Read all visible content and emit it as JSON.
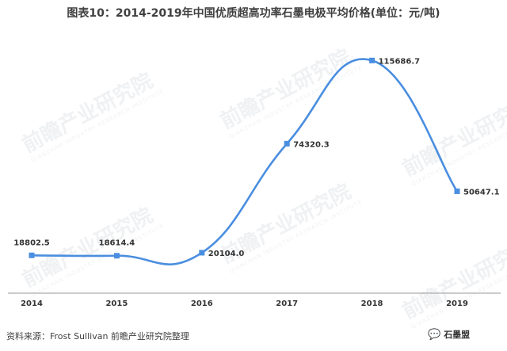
{
  "title": "图表10：2014-2019年中国优质超高功率石墨电极平均价格(单位：元/吨)",
  "source": "资料来源：Frost Sullivan  前瞻产业研究院整理",
  "badge": {
    "label": "石墨盟",
    "icon": "wechat-icon"
  },
  "watermark": {
    "text": "前瞻产业研究院",
    "subtext": "QIANZHAN INDUSTRY RESEARCH INSTITUTE"
  },
  "colors": {
    "line": "#4a8ee0",
    "axis": "#999999",
    "label": "#333333"
  },
  "chart_data": {
    "type": "line",
    "title": "图表10：2014-2019年中国优质超高功率石墨电极平均价格(单位：元/吨)",
    "xlabel": "",
    "ylabel": "",
    "categories": [
      "2014",
      "2015",
      "2016",
      "2017",
      "2018",
      "2019"
    ],
    "series": [
      {
        "values": [
          18802.5,
          18614.4,
          20104.0,
          74320.3,
          115686.7,
          50647.1
        ],
        "labels": [
          "18802.5",
          "18614.4",
          "20104.0",
          "74320.3",
          "115686.7",
          "50647.1"
        ]
      }
    ],
    "ylim": [
      0,
      130000
    ],
    "grid": false,
    "smooth": true,
    "marker": "square"
  }
}
